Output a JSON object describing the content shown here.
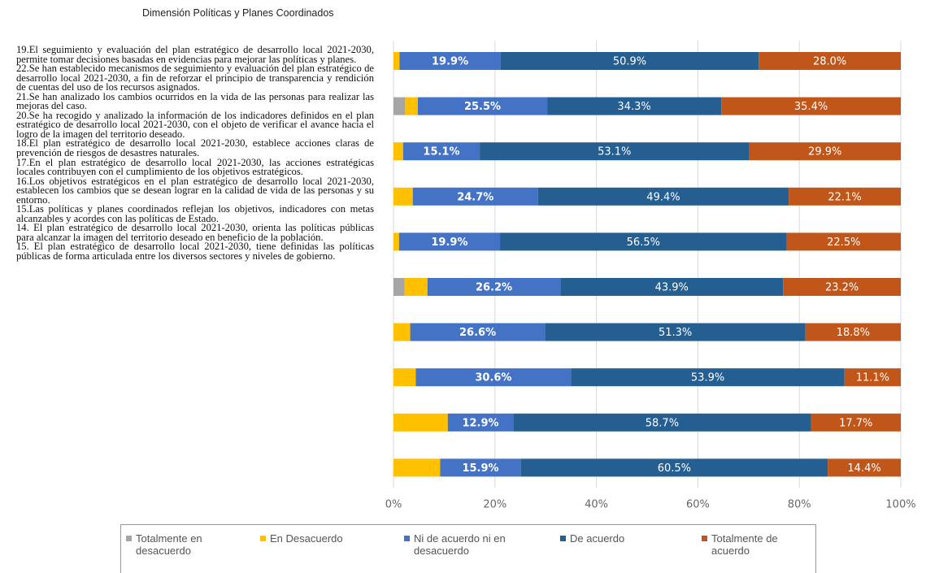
{
  "chart_data": {
    "type": "stacked_barh",
    "title": "Dimensión Políticas y Planes Coordinados",
    "categories": [
      "19.El seguimiento y evaluación del plan estratégico de desarrollo local 2021-2030, permite tomar decisiones basadas en evidencias para mejorar las políticas y planes.",
      "22.Se han establecido mecanismos de seguimiento y evaluación del plan estratégico de desarrollo local 2021-2030, a fin de reforzar el principio de transparencia y rendición de cuentas del uso de los recursos asignados.",
      "21.Se han analizado los cambios ocurridos en la vida de las personas para realizar las mejoras del caso.",
      "20.Se ha recogido y analizado la información de los indicadores definidos en el plan estratégico de desarrollo local 2021-2030, con el objeto de verificar el avance hacia el logro de la imagen del territorio deseado.",
      "18.El plan estratégico de desarrollo local 2021-2030, establece acciones claras de prevención de riesgos de desastres naturales.",
      "17.En el plan estratégico de desarrollo local 2021-2030, las acciones estratégicas locales contribuyen con el cumplimiento de los objetivos estratégicos.",
      "16.Los objetivos estratégicos en el plan estratégico de desarrollo local 2021-2030, establecen los cambios que se desean lograr en la calidad de vida de las personas y su entorno.",
      "15.Las políticas y planes coordinados reflejan los objetivos, indicadores con metas alcanzables y acordes con las políticas de Estado.",
      "14. El plan estratégico de desarrollo local 2021-2030, orienta las políticas públicas para alcanzar la imagen del territorio deseado en beneficio de la población.",
      "15. El plan estratégico de desarrollo local 2021-2030, tiene definidas las políticas públicas de forma articulada entre los diversos sectores y niveles de gobierno."
    ],
    "series": [
      {
        "name": "Totalmente en desacuerdo",
        "color": "#a5a5a5",
        "values": [
          0,
          2.3,
          0,
          0,
          0,
          2.2,
          0,
          0,
          0,
          0
        ]
      },
      {
        "name": "En Desacuerdo",
        "color": "#ffc000",
        "values": [
          1.2,
          2.5,
          1.9,
          3.8,
          1.1,
          4.5,
          3.3,
          4.4,
          10.7,
          9.2
        ]
      },
      {
        "name": "Ni de acuerdo ni en desacuerdo",
        "color": "#4472c4",
        "values": [
          19.9,
          25.5,
          15.1,
          24.7,
          19.9,
          26.2,
          26.6,
          30.6,
          12.9,
          15.9
        ],
        "value_labels": [
          "19.9%",
          "25.5%",
          "15.1%",
          "24.7%",
          "19.9%",
          "26.2%",
          "26.6%",
          "30.6%",
          "12.9%",
          "15.9%"
        ]
      },
      {
        "name": "De acuerdo",
        "color": "#255e91",
        "values": [
          50.9,
          34.3,
          53.1,
          49.4,
          56.5,
          43.9,
          51.3,
          53.9,
          58.7,
          60.5
        ],
        "value_labels": [
          "50.9%",
          "34.3%",
          "53.1%",
          "49.4%",
          "56.5%",
          "43.9%",
          "51.3%",
          "53.9%",
          "58.7%",
          "60.5%"
        ]
      },
      {
        "name": "Totalmente de acuerdo",
        "color": "#c0561a",
        "values": [
          28.0,
          35.4,
          29.9,
          22.1,
          22.5,
          23.2,
          18.8,
          11.1,
          17.7,
          14.4
        ],
        "value_labels": [
          "28.0%",
          "35.4%",
          "29.9%",
          "22.1%",
          "22.5%",
          "23.2%",
          "18.8%",
          "11.1%",
          "17.7%",
          "14.4%"
        ]
      }
    ],
    "xlim": [
      0,
      100
    ],
    "xticks": [
      {
        "value": 0,
        "label": "0%"
      },
      {
        "value": 20,
        "label": "20%"
      },
      {
        "value": 40,
        "label": "40%"
      },
      {
        "value": 60,
        "label": "60%"
      },
      {
        "value": 80,
        "label": "80%"
      },
      {
        "value": 100,
        "label": "100%"
      }
    ],
    "grid": true
  }
}
